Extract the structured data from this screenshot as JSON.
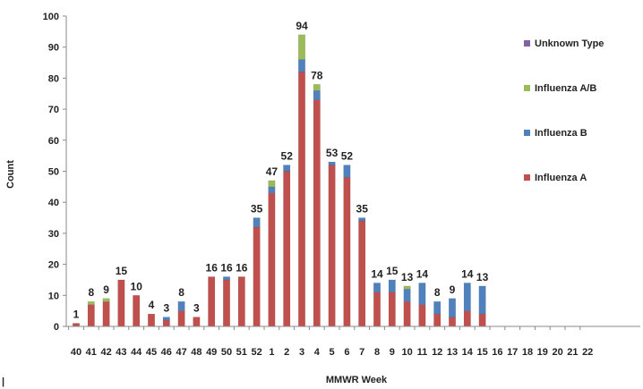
{
  "chart_data": {
    "type": "bar",
    "stacked": true,
    "title": "",
    "xlabel": "MMWR Week",
    "ylabel": "Count",
    "ylim": [
      0,
      100
    ],
    "yticks": [
      0,
      10,
      20,
      30,
      40,
      50,
      60,
      70,
      80,
      90,
      100
    ],
    "grid": false,
    "legend_position": "right",
    "categories": [
      "40",
      "41",
      "42",
      "43",
      "44",
      "45",
      "46",
      "47",
      "48",
      "49",
      "50",
      "51",
      "52",
      "1",
      "2",
      "3",
      "4",
      "5",
      "6",
      "7",
      "8",
      "9",
      "10",
      "11",
      "12",
      "13",
      "14",
      "15",
      "16",
      "17",
      "18",
      "19",
      "20",
      "21",
      "22"
    ],
    "series": [
      {
        "name": "Influenza A",
        "color": "#c0504d",
        "values": [
          1,
          7,
          8,
          15,
          10,
          4,
          2,
          5,
          3,
          16,
          15,
          16,
          32,
          43,
          50,
          82,
          73,
          52,
          48,
          34,
          11,
          11,
          8,
          7,
          4,
          3,
          5,
          4,
          0,
          0,
          0,
          0,
          0,
          0,
          0
        ]
      },
      {
        "name": "Influenza B",
        "color": "#4f81bd",
        "values": [
          0,
          0,
          0,
          0,
          0,
          0,
          1,
          3,
          0,
          0,
          1,
          0,
          3,
          2,
          2,
          4,
          3,
          1,
          4,
          1,
          3,
          4,
          4,
          7,
          4,
          6,
          9,
          9,
          0,
          0,
          0,
          0,
          0,
          0,
          0
        ]
      },
      {
        "name": "Influenza A/B",
        "color": "#9bbb59",
        "values": [
          0,
          1,
          1,
          0,
          0,
          0,
          0,
          0,
          0,
          0,
          0,
          0,
          0,
          2,
          0,
          8,
          2,
          0,
          0,
          0,
          0,
          0,
          1,
          0,
          0,
          0,
          0,
          0,
          0,
          0,
          0,
          0,
          0,
          0,
          0
        ]
      },
      {
        "name": "Unknown Type",
        "color": "#8064a2",
        "values": [
          0,
          0,
          0,
          0,
          0,
          0,
          0,
          0,
          0,
          0,
          0,
          0,
          0,
          0,
          0,
          0,
          0,
          0,
          0,
          0,
          0,
          0,
          0,
          0,
          0,
          0,
          0,
          0,
          0,
          0,
          0,
          0,
          0,
          0,
          0
        ]
      }
    ],
    "legend_order": [
      "Unknown Type",
      "Influenza A/B",
      "Influenza B",
      "Influenza A"
    ],
    "total_labels": [
      "1",
      "8",
      "9",
      "15",
      "10",
      "4",
      "3",
      "8",
      "3",
      "16",
      "16",
      "16",
      "35",
      "47",
      "52",
      "94",
      "78",
      "53",
      "52",
      "35",
      "14",
      "15",
      "13",
      "14",
      "8",
      "9",
      "14",
      "13",
      "",
      "",
      "",
      "",
      "",
      "",
      ""
    ]
  }
}
